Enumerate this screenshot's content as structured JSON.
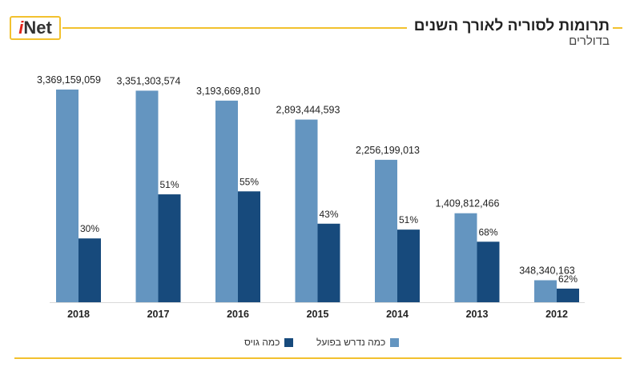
{
  "header": {
    "logo_i": "i",
    "logo_net": "Net",
    "title": "תרומות לסוריה לאורך השנים",
    "subtitle": "בדולרים"
  },
  "colors": {
    "accent": "#f2c12e",
    "logo_red": "#e2231a",
    "required": "#6495c0",
    "given": "#174a7c",
    "text": "#222222"
  },
  "legend": {
    "required_label": "כמה נדרש בפועל",
    "given_label": "כמה גויס"
  },
  "chart_data": {
    "type": "bar",
    "categories": [
      "2018",
      "2017",
      "2016",
      "2015",
      "2014",
      "2013",
      "2012"
    ],
    "series": [
      {
        "name": "כמה נדרש בפועל",
        "values": [
          3369159059,
          3351303574,
          3193669810,
          2893444593,
          2256199013,
          1409812466,
          348340163
        ],
        "labels": [
          "3,369,159,059",
          "3,351,303,574",
          "3,193,669,810",
          "2,893,444,593",
          "2,256,199,013",
          "1,409,812,466",
          "348,340,163"
        ]
      },
      {
        "name": "כמה גויס",
        "percent_of_required": [
          30,
          51,
          55,
          43,
          51,
          68,
          62
        ],
        "labels": [
          "30%",
          "51%",
          "55%",
          "43%",
          "51%",
          "68%",
          "62%"
        ]
      }
    ],
    "ylim": [
      0,
      3369159059
    ],
    "grid": false,
    "legend_position": "bottom-center"
  }
}
